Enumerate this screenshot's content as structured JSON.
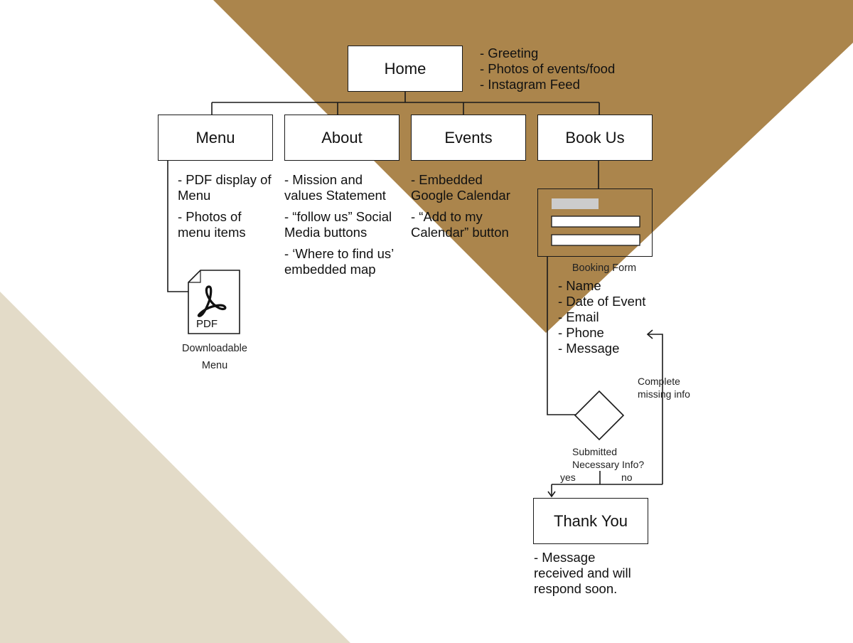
{
  "colors": {
    "gold": "#ab854c",
    "sand": "#e3dbc8",
    "line": "#1a1a1a"
  },
  "home": {
    "label": "Home",
    "notes": [
      "- Greeting",
      "- Photos of events/food",
      "- Instagram Feed"
    ]
  },
  "pages": {
    "menu": {
      "label": "Menu",
      "notes": [
        [
          "- PDF display of",
          "Menu"
        ],
        [
          "- Photos of",
          "menu items"
        ]
      ]
    },
    "about": {
      "label": "About",
      "notes": [
        [
          "- Mission and",
          "values Statement"
        ],
        [
          "- “follow us” Social",
          "Media buttons"
        ],
        [
          "- ‘Where to find us’",
          "embedded map"
        ]
      ]
    },
    "events": {
      "label": "Events",
      "notes": [
        [
          "- Embedded",
          "Google Calendar"
        ],
        [
          "- “Add to my",
          "Calendar” button"
        ]
      ]
    },
    "book": {
      "label": "Book Us"
    }
  },
  "pdf": {
    "icon_text": "PDF",
    "caption": [
      "Downloadable",
      "Menu"
    ]
  },
  "booking_form": {
    "caption": "Booking Form",
    "fields": [
      "- Name",
      "- Date of Event",
      "- Email",
      "- Phone",
      "- Message"
    ]
  },
  "decision": {
    "question": [
      "Submitted",
      "Necessary Info?"
    ],
    "yes": "yes",
    "no": "no",
    "loop_label": [
      "Complete",
      "missing info"
    ]
  },
  "thank_you": {
    "label": "Thank You",
    "notes": [
      "- Message",
      "received and will",
      "respond soon."
    ]
  }
}
